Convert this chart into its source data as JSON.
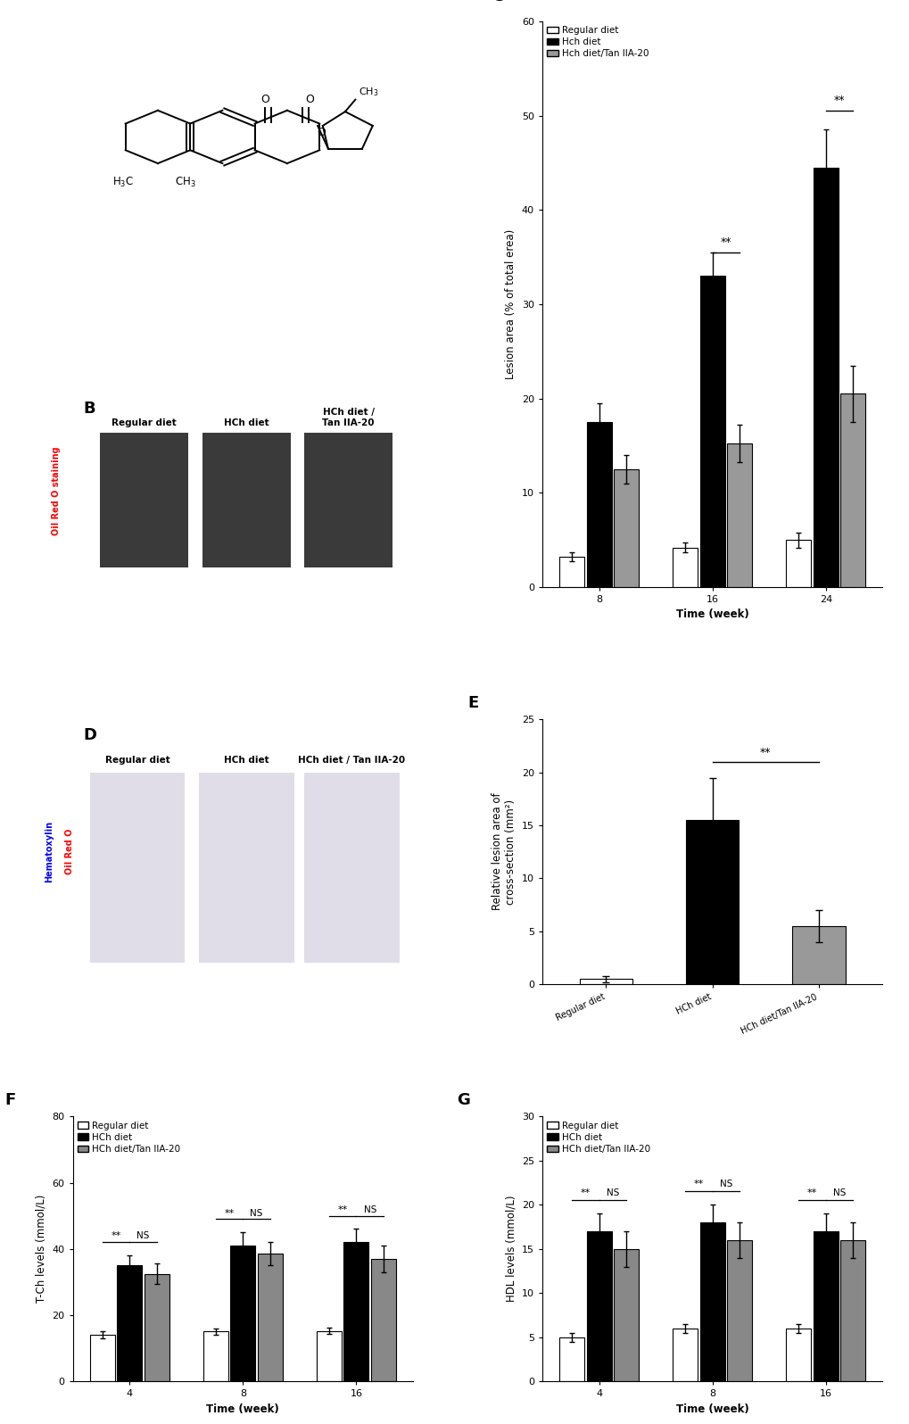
{
  "panel_C": {
    "xlabel": "Time (week)",
    "ylabel": "Lesion area (% of total erea)",
    "time_points": [
      8,
      16,
      24
    ],
    "regular_diet": [
      3.2,
      4.2,
      5.0
    ],
    "regular_diet_err": [
      0.5,
      0.5,
      0.8
    ],
    "hch_diet": [
      17.5,
      33.0,
      44.5
    ],
    "hch_diet_err": [
      2.0,
      2.5,
      4.0
    ],
    "hch_tan": [
      12.5,
      15.2,
      20.5
    ],
    "hch_tan_err": [
      1.5,
      2.0,
      3.0
    ],
    "ylim": [
      0,
      60
    ],
    "yticks": [
      0,
      10,
      20,
      30,
      40,
      50,
      60
    ],
    "legend_labels": [
      "Regular diet",
      "Hch diet",
      "Hch diet/Tan IIA-20"
    ],
    "bar_colors": [
      "white",
      "black",
      "#999999"
    ]
  },
  "panel_E": {
    "ylabel": "Relative lesion area of\ncross-section (mm²)",
    "categories": [
      "Regular diet",
      "HCh diet",
      "HCh diet/Tan IIA-20"
    ],
    "values": [
      0.5,
      15.5,
      5.5
    ],
    "errors": [
      0.3,
      4.0,
      1.5
    ],
    "bar_colors": [
      "white",
      "black",
      "#999999"
    ],
    "ylim": [
      0,
      25
    ],
    "yticks": [
      0,
      5,
      10,
      15,
      20,
      25
    ]
  },
  "panel_F": {
    "xlabel": "Time (week)",
    "ylabel": "T-Ch levels (mmol/L)",
    "time_points": [
      4,
      8,
      16
    ],
    "regular_diet": [
      14.0,
      15.0,
      15.2
    ],
    "regular_diet_err": [
      1.0,
      1.0,
      1.0
    ],
    "hch_diet": [
      35.0,
      41.0,
      42.0
    ],
    "hch_diet_err": [
      3.0,
      4.0,
      4.0
    ],
    "hch_tan": [
      32.5,
      38.5,
      37.0
    ],
    "hch_tan_err": [
      3.0,
      3.5,
      4.0
    ],
    "ylim": [
      0,
      80
    ],
    "yticks": [
      0,
      20,
      40,
      60,
      80
    ],
    "legend_labels": [
      "Regular diet",
      "HCh diet",
      "HCh diet/Tan IIA-20"
    ],
    "bar_colors": [
      "white",
      "black",
      "#888888"
    ]
  },
  "panel_G": {
    "xlabel": "Time (week)",
    "ylabel": "HDL levels (mmol/L)",
    "time_points": [
      4,
      8,
      16
    ],
    "regular_diet": [
      5.0,
      6.0,
      6.0
    ],
    "regular_diet_err": [
      0.5,
      0.5,
      0.5
    ],
    "hch_diet": [
      17.0,
      18.0,
      17.0
    ],
    "hch_diet_err": [
      2.0,
      2.0,
      2.0
    ],
    "hch_tan": [
      15.0,
      16.0,
      16.0
    ],
    "hch_tan_err": [
      2.0,
      2.0,
      2.0
    ],
    "ylim": [
      0,
      30
    ],
    "yticks": [
      0,
      5,
      10,
      15,
      20,
      25,
      30
    ],
    "legend_labels": [
      "Regular diet",
      "HCh diet",
      "HCh diet/Tan IIA-20"
    ],
    "bar_colors": [
      "white",
      "black",
      "#888888"
    ]
  },
  "background_color": "#ffffff",
  "panel_label_fontsize": 13,
  "axis_fontsize": 8.5,
  "tick_fontsize": 8,
  "legend_fontsize": 7.5
}
